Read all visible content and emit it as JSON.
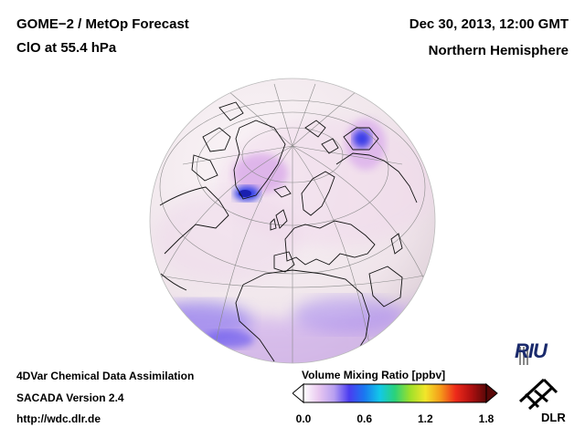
{
  "header": {
    "product": "GOME−2 / MetOp Forecast",
    "species": "ClO at 55.4 hPa",
    "datetime": "Dec 30, 2013, 12:00 GMT",
    "region": "Northern Hemisphere"
  },
  "footer": {
    "method": "4DVar Chemical Data Assimilation",
    "version": "SACADA Version 2.4",
    "url": "http://wdc.dlr.de"
  },
  "colorbar": {
    "title": "Volume Mixing Ratio [ppbv]",
    "ticks": [
      "0.0",
      "0.6",
      "1.2",
      "1.8"
    ],
    "range": [
      0.0,
      1.8
    ],
    "colors": [
      "#ffffff",
      "#e9c8f0",
      "#b8a0f0",
      "#4a3cf0",
      "#1a78f0",
      "#12c8e8",
      "#2ad27a",
      "#9ee02a",
      "#f2e62a",
      "#f59a1a",
      "#ee2a1a",
      "#b01010",
      "#5a0808"
    ]
  },
  "logos": {
    "riu": "RIU",
    "dlr": "DLR"
  },
  "colors": {
    "globe_base": "#f3e9ee",
    "clo_low": "#dba0e6",
    "clo_high": "#2838e8",
    "coast": "#111111",
    "grid": "#8a8a8a"
  }
}
